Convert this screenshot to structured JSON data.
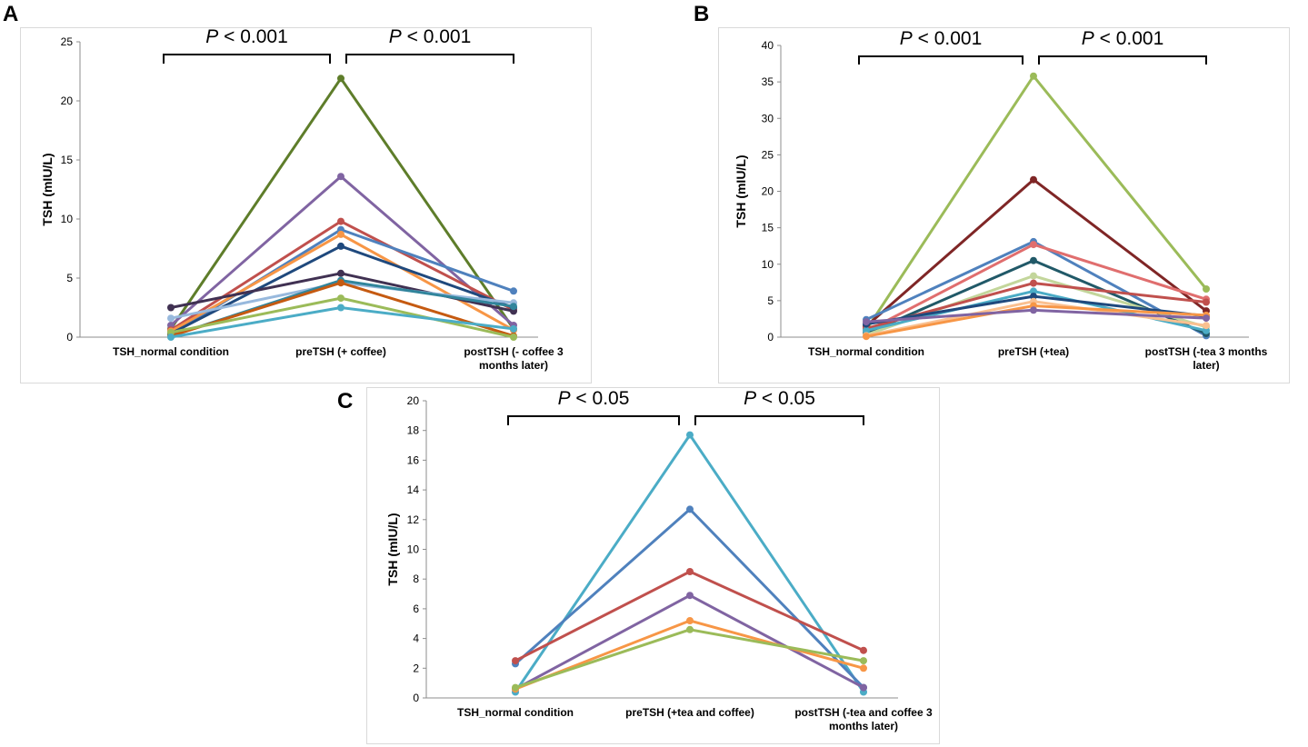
{
  "chart_data": [
    {
      "panel": "A",
      "type": "line",
      "ylabel": "TSH (mIU/L)",
      "ylim": [
        0,
        25
      ],
      "yticks": [
        0,
        5,
        10,
        15,
        20,
        25
      ],
      "categories": [
        "TSH_normal condition",
        "preTSH (+ coffee)",
        "postTSH (- coffee 3 months later)"
      ],
      "category_lines": [
        [
          "TSH_normal condition"
        ],
        [
          "preTSH (+ coffee)"
        ],
        [
          "postTSH (- coffee 3",
          "months later)"
        ]
      ],
      "comparisons": [
        {
          "p_symbol": "P",
          "p_text": " < 0.001"
        },
        {
          "p_symbol": "P",
          "p_text": " < 0.001"
        }
      ],
      "series": [
        {
          "name": "s1",
          "color": "#5E7D2A",
          "values": [
            0.7,
            21.9,
            0.7
          ]
        },
        {
          "name": "s2",
          "color": "#8064A2",
          "values": [
            1.0,
            13.6,
            1.0
          ]
        },
        {
          "name": "s3",
          "color": "#C0504D",
          "values": [
            0.6,
            9.8,
            2.3
          ]
        },
        {
          "name": "s4",
          "color": "#4F81BD",
          "values": [
            0.2,
            9.1,
            3.9
          ]
        },
        {
          "name": "s5",
          "color": "#F79646",
          "values": [
            0.5,
            8.7,
            0.6
          ]
        },
        {
          "name": "s6",
          "color": "#1F497D",
          "values": [
            0.3,
            7.7,
            2.5
          ]
        },
        {
          "name": "s7",
          "color": "#403152",
          "values": [
            2.5,
            5.4,
            2.2
          ]
        },
        {
          "name": "s8",
          "color": "#98B9DD",
          "values": [
            1.6,
            4.6,
            2.9
          ]
        },
        {
          "name": "s9",
          "color": "#31859C",
          "values": [
            0.1,
            4.8,
            2.6
          ]
        },
        {
          "name": "s10",
          "color": "#C55A11",
          "values": [
            0.1,
            4.6,
            0.1
          ]
        },
        {
          "name": "s11",
          "color": "#9BBB59",
          "values": [
            0.4,
            3.3,
            0.0
          ]
        },
        {
          "name": "s12",
          "color": "#4BACC6",
          "values": [
            0.0,
            2.5,
            0.7
          ]
        }
      ]
    },
    {
      "panel": "B",
      "type": "line",
      "ylabel": "TSH (mIU/L)",
      "ylim": [
        0,
        40
      ],
      "yticks": [
        0,
        5,
        10,
        15,
        20,
        25,
        30,
        35,
        40
      ],
      "categories": [
        "TSH_normal condition",
        "preTSH (+tea)",
        "postTSH (-tea 3 months later)"
      ],
      "category_lines": [
        [
          "TSH_normal condition"
        ],
        [
          "preTSH (+tea)"
        ],
        [
          "postTSH (-tea 3 months",
          "later)"
        ]
      ],
      "comparisons": [
        {
          "p_symbol": "P",
          "p_text": " < 0.001"
        },
        {
          "p_symbol": "P",
          "p_text": " < 0.001"
        }
      ],
      "series": [
        {
          "name": "s1",
          "color": "#9BBB59",
          "values": [
            1.0,
            35.8,
            6.6
          ]
        },
        {
          "name": "s2",
          "color": "#7F2626",
          "values": [
            1.5,
            21.6,
            3.6
          ]
        },
        {
          "name": "s3",
          "color": "#4F81BD",
          "values": [
            2.4,
            13.1,
            0.2
          ]
        },
        {
          "name": "s4",
          "color": "#E06E6E",
          "values": [
            0.8,
            12.7,
            5.2
          ]
        },
        {
          "name": "s5",
          "color": "#215968",
          "values": [
            0.5,
            10.5,
            0.5
          ]
        },
        {
          "name": "s6",
          "color": "#C3D69B",
          "values": [
            0.3,
            8.4,
            1.4
          ]
        },
        {
          "name": "s7",
          "color": "#C0504D",
          "values": [
            1.2,
            7.4,
            4.8
          ]
        },
        {
          "name": "s8",
          "color": "#4BACC6",
          "values": [
            0.9,
            6.3,
            0.9
          ]
        },
        {
          "name": "s9",
          "color": "#1F497D",
          "values": [
            1.8,
            5.6,
            2.9
          ]
        },
        {
          "name": "s10",
          "color": "#FAC090",
          "values": [
            0.2,
            4.9,
            1.6
          ]
        },
        {
          "name": "s11",
          "color": "#F79646",
          "values": [
            0.1,
            4.3,
            3.0
          ]
        },
        {
          "name": "s12",
          "color": "#8064A2",
          "values": [
            2.1,
            3.7,
            2.6
          ]
        }
      ]
    },
    {
      "panel": "C",
      "type": "line",
      "ylabel": "TSH (mIU/L)",
      "ylim": [
        0,
        20
      ],
      "yticks": [
        0,
        2,
        4,
        6,
        8,
        10,
        12,
        14,
        16,
        18,
        20
      ],
      "categories": [
        "TSH_normal condition",
        "preTSH (+tea and coffee)",
        "postTSH (-tea and coffee 3 months later)"
      ],
      "category_lines": [
        [
          "TSH_normal condition"
        ],
        [
          "preTSH (+tea and coffee)"
        ],
        [
          "postTSH (-tea and coffee 3",
          "months later)"
        ]
      ],
      "comparisons": [
        {
          "p_symbol": "P",
          "p_text": " < 0.05"
        },
        {
          "p_symbol": "P",
          "p_text": " < 0.05"
        }
      ],
      "series": [
        {
          "name": "s1",
          "color": "#4BACC6",
          "values": [
            0.4,
            17.7,
            0.4
          ]
        },
        {
          "name": "s2",
          "color": "#4F81BD",
          "values": [
            2.3,
            12.7,
            0.7
          ]
        },
        {
          "name": "s3",
          "color": "#C0504D",
          "values": [
            2.5,
            8.5,
            3.2
          ]
        },
        {
          "name": "s4",
          "color": "#8064A2",
          "values": [
            0.6,
            6.9,
            0.7
          ]
        },
        {
          "name": "s5",
          "color": "#F79646",
          "values": [
            0.6,
            5.2,
            2.0
          ]
        },
        {
          "name": "s6",
          "color": "#9BBB59",
          "values": [
            0.7,
            4.6,
            2.5
          ]
        }
      ]
    }
  ]
}
